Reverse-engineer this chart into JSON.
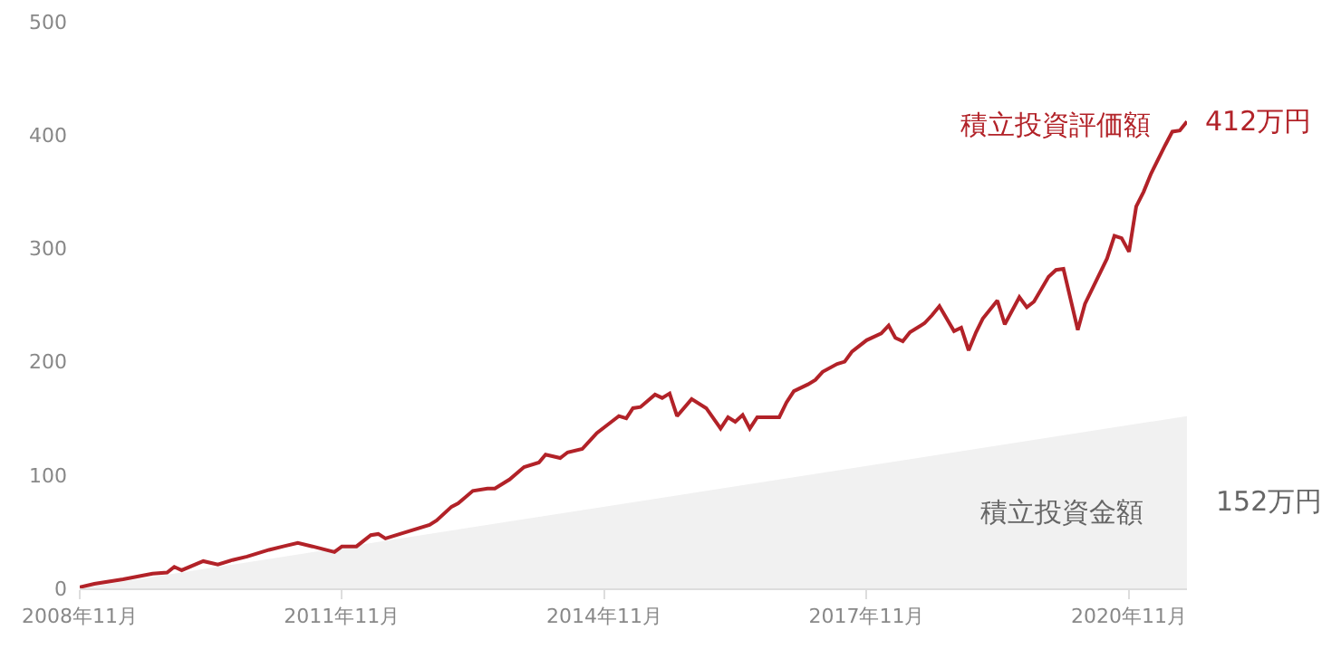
{
  "chart_data": {
    "type": "line",
    "xlim": [
      "2008-11",
      "2021-07"
    ],
    "ylim": [
      0,
      500
    ],
    "yticks": [
      0,
      100,
      200,
      300,
      400,
      500
    ],
    "xticks": [
      {
        "value": "2008-11",
        "label": "2008年11月"
      },
      {
        "value": "2011-11",
        "label": "2011年11月"
      },
      {
        "value": "2014-11",
        "label": "2014年11月"
      },
      {
        "value": "2017-11",
        "label": "2017年11月"
      },
      {
        "value": "2020-11",
        "label": "2020年11月"
      }
    ],
    "grid": false,
    "legend": false,
    "marker": "none",
    "line_style": "solid",
    "series": [
      {
        "name": "積立投資金額",
        "type": "area",
        "color": "#f1f1f1",
        "x": [
          "2008-11",
          "2021-07"
        ],
        "values": [
          0,
          152
        ]
      },
      {
        "name": "積立投資評価額",
        "color": "#b22228",
        "x": [
          "2008-11",
          "2009-01",
          "2009-05",
          "2009-09",
          "2009-11",
          "2009-12",
          "2010-01",
          "2010-04",
          "2010-06",
          "2010-08",
          "2010-10",
          "2011-01",
          "2011-03",
          "2011-05",
          "2011-07",
          "2011-10",
          "2011-11",
          "2012-01",
          "2012-03",
          "2012-04",
          "2012-05",
          "2012-07",
          "2012-11",
          "2012-12",
          "2013-02",
          "2013-03",
          "2013-05",
          "2013-07",
          "2013-08",
          "2013-10",
          "2013-12",
          "2014-02",
          "2014-03",
          "2014-05",
          "2014-06",
          "2014-08",
          "2014-09",
          "2014-10",
          "2014-12",
          "2015-01",
          "2015-02",
          "2015-03",
          "2015-04",
          "2015-06",
          "2015-07",
          "2015-08",
          "2015-09",
          "2015-11",
          "2016-01",
          "2016-03",
          "2016-04",
          "2016-05",
          "2016-06",
          "2016-07",
          "2016-08",
          "2016-11",
          "2016-12",
          "2017-01",
          "2017-03",
          "2017-04",
          "2017-05",
          "2017-07",
          "2017-08",
          "2017-09",
          "2017-11",
          "2018-01",
          "2018-02",
          "2018-03",
          "2018-04",
          "2018-05",
          "2018-07",
          "2018-08",
          "2018-09",
          "2018-11",
          "2018-12",
          "2019-01",
          "2019-02",
          "2019-03",
          "2019-05",
          "2019-06",
          "2019-08",
          "2019-09",
          "2019-10",
          "2019-12",
          "2020-01",
          "2020-02",
          "2020-04",
          "2020-05",
          "2020-08",
          "2020-09",
          "2020-10",
          "2020-11",
          "2020-12",
          "2021-01",
          "2021-02",
          "2021-04",
          "2021-05",
          "2021-06",
          "2021-07"
        ],
        "values": [
          1,
          4,
          8,
          13,
          14,
          19,
          16,
          24,
          21,
          25,
          28,
          34,
          37,
          40,
          37,
          32,
          37,
          37,
          47,
          48,
          44,
          48,
          56,
          60,
          72,
          75,
          86,
          88,
          88,
          96,
          107,
          111,
          118,
          115,
          120,
          123,
          130,
          137,
          147,
          152,
          150,
          159,
          160,
          171,
          168,
          172,
          152,
          167,
          159,
          141,
          151,
          147,
          153,
          141,
          151,
          151,
          164,
          174,
          180,
          184,
          191,
          198,
          200,
          209,
          219,
          225,
          232,
          221,
          218,
          226,
          234,
          241,
          249,
          227,
          230,
          210,
          226,
          238,
          254,
          233,
          257,
          248,
          253,
          275,
          281,
          282,
          228,
          251,
          291,
          311,
          309,
          297,
          337,
          350,
          366,
          391,
          403,
          404,
          412
        ]
      }
    ],
    "annotations": [
      {
        "text": "412万円",
        "x": "2021-07",
        "y": 412
      },
      "152万円"
    ]
  }
}
